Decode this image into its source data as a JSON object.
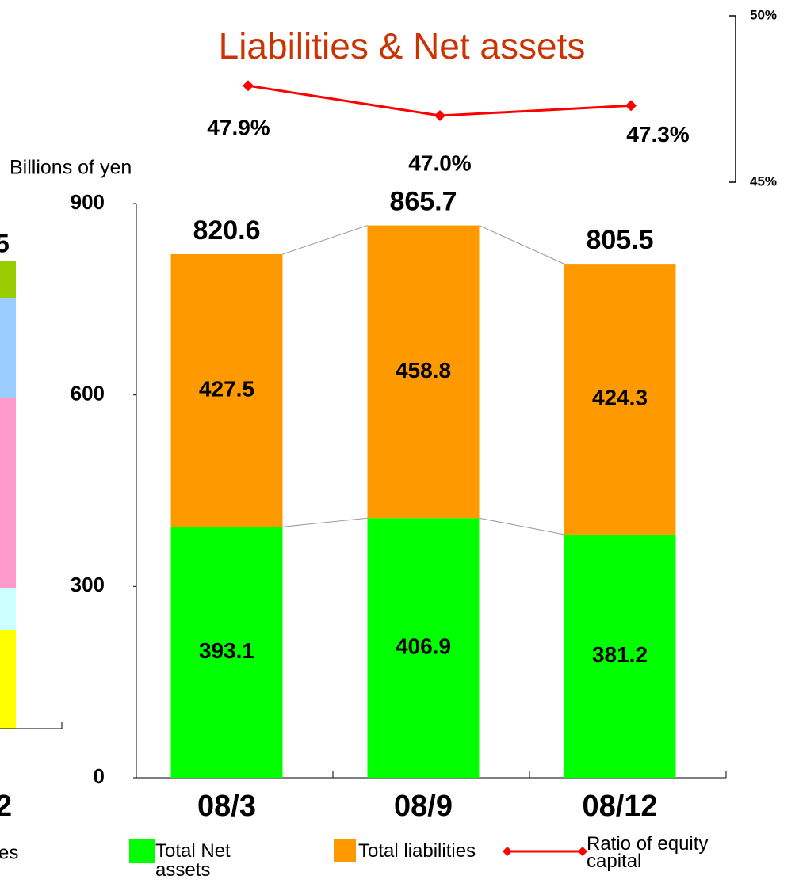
{
  "chart_data": {
    "type": "bar",
    "stacked": true,
    "title": "Liabilities & Net assets",
    "ylabel": "Billions of yen",
    "categories": [
      "08/3",
      "08/9",
      "08/12"
    ],
    "series": [
      {
        "name": "Total Net assets",
        "color": "#00ff00",
        "values": [
          393.1,
          406.9,
          381.2
        ]
      },
      {
        "name": "Total liabilities",
        "color": "#ff9900",
        "values": [
          427.5,
          458.8,
          424.3
        ]
      },
      {
        "name": "Ratio of equity capital",
        "color": "#ff0000",
        "type": "line",
        "axis": "y2",
        "values": [
          47.9,
          47.0,
          47.3
        ],
        "value_labels": [
          "47.9%",
          "47.0%",
          "47.3%"
        ]
      }
    ],
    "totals": [
      820.6,
      865.7,
      805.5
    ],
    "ylim": [
      0,
      900
    ],
    "yticks": [
      0,
      300,
      600,
      900
    ],
    "y2lim": [
      45,
      50
    ],
    "y2ticks": [
      {
        "value": 45,
        "label": "45%"
      },
      {
        "value": 50,
        "label": "50%"
      }
    ],
    "grid": false,
    "legend": "bottom"
  },
  "cropped_texts": [
    "5",
    "2",
    "es"
  ]
}
